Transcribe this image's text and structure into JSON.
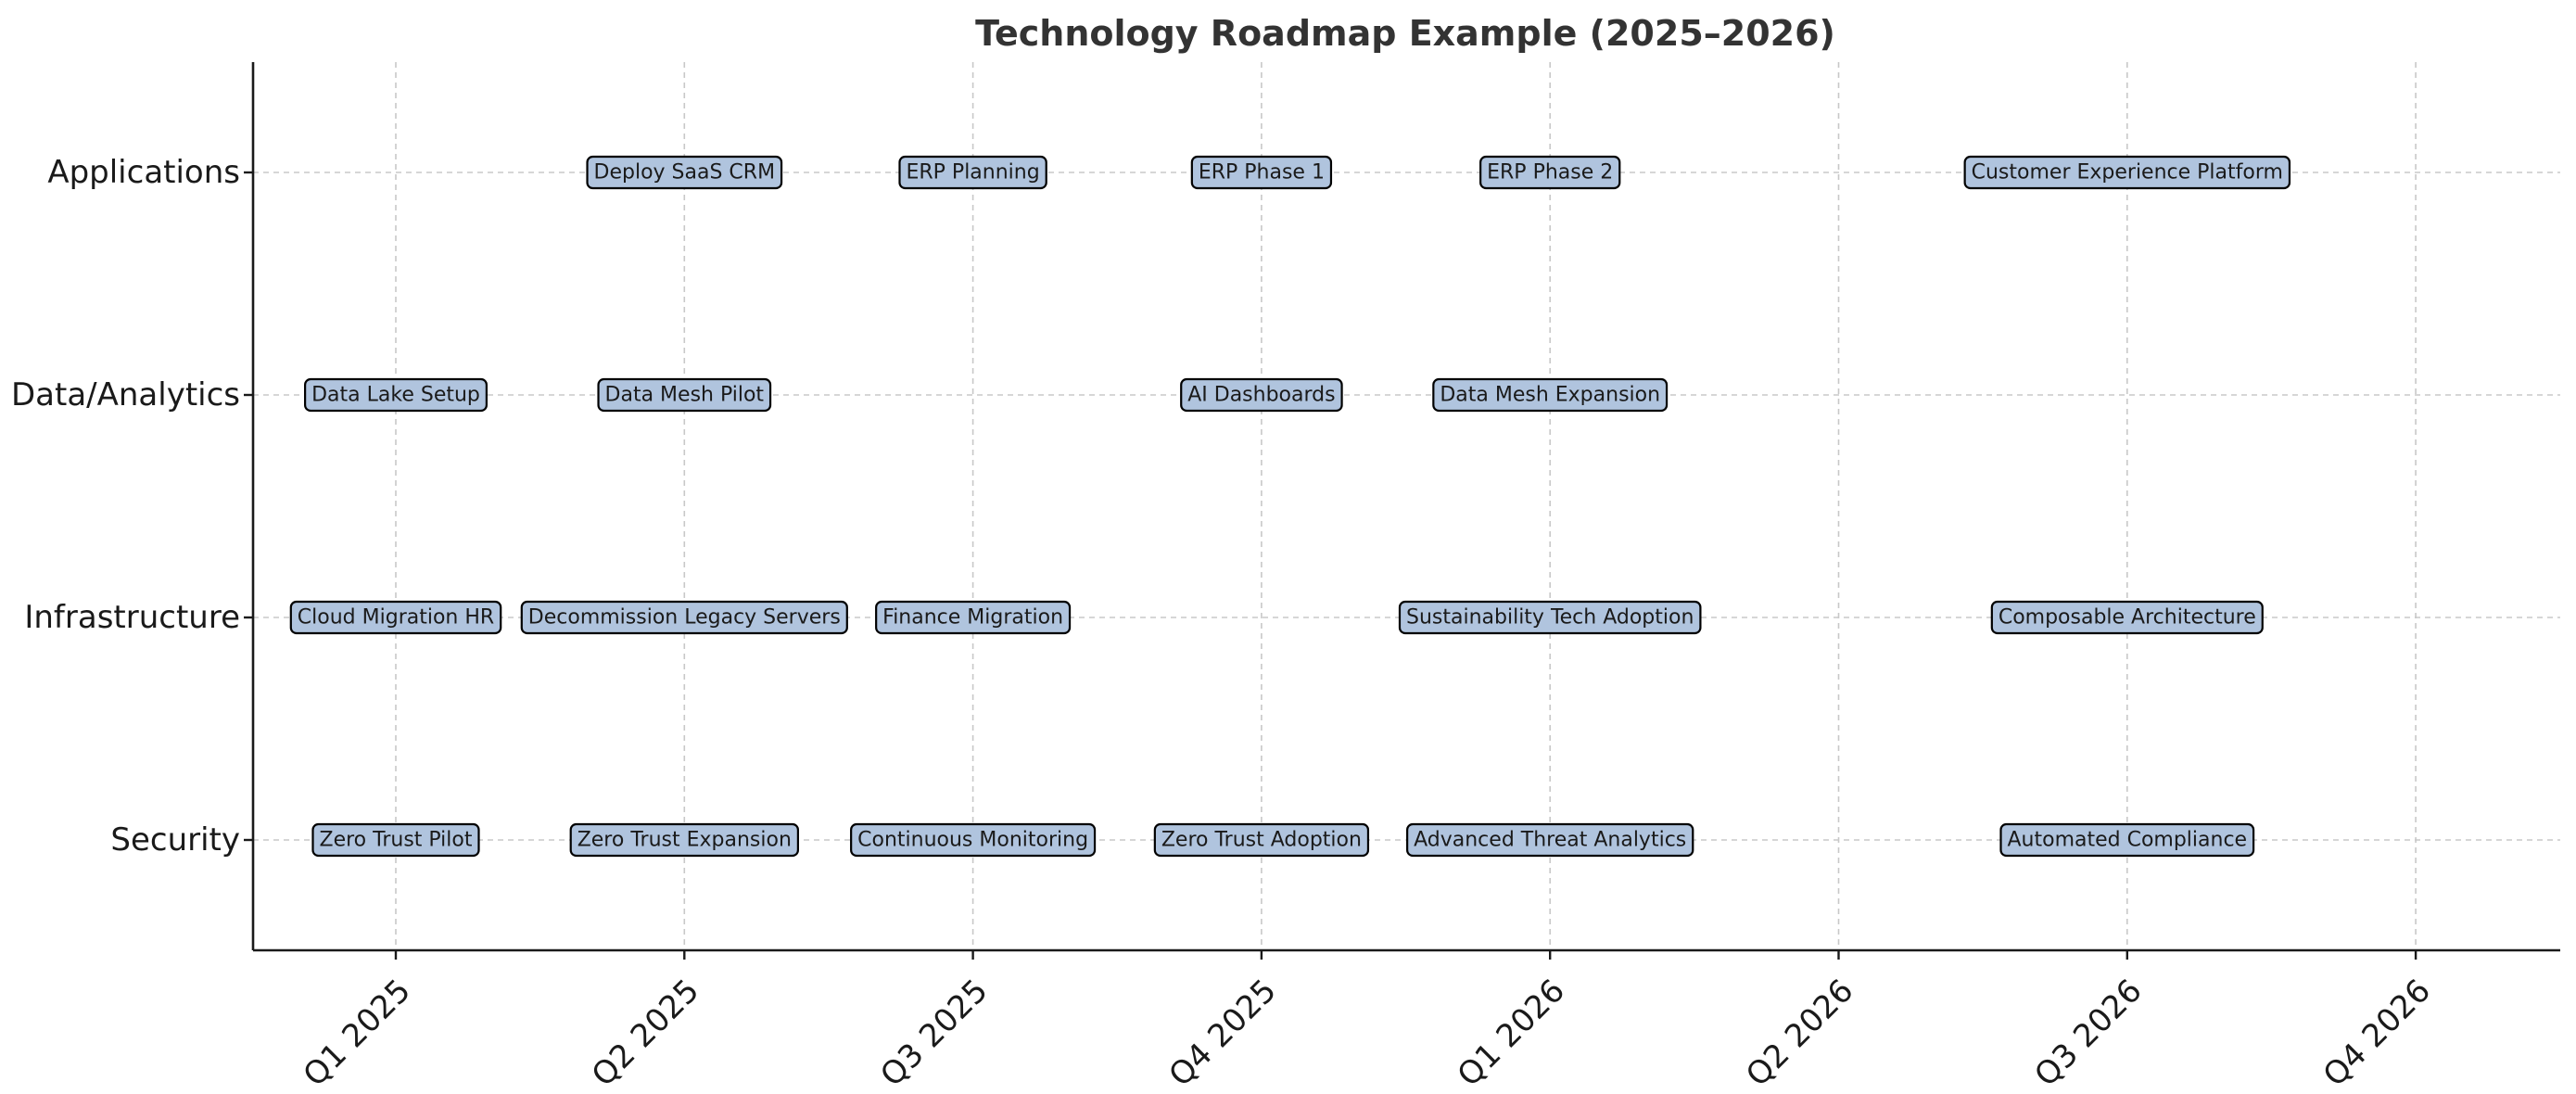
{
  "chart_data": {
    "type": "timeline",
    "title": "Technology Roadmap Example (2025–2026)",
    "xlabel": "",
    "ylabel": "",
    "x_ticks": [
      "Q1 2025",
      "Q2 2025",
      "Q3 2025",
      "Q4 2025",
      "Q1 2026",
      "Q2 2026",
      "Q3 2026",
      "Q4 2026"
    ],
    "xlim": [
      "2024-11-01",
      "2026-12-24"
    ],
    "categories": [
      "Security",
      "Infrastructure",
      "Data/Analytics",
      "Applications"
    ],
    "grid": true,
    "tag_color": "#b0c4de",
    "items": [
      {
        "lane": "Applications",
        "quarter": "Q2 2025",
        "label": "Deploy SaaS CRM"
      },
      {
        "lane": "Applications",
        "quarter": "Q3 2025",
        "label": "ERP Planning"
      },
      {
        "lane": "Applications",
        "quarter": "Q4 2025",
        "label": "ERP Phase 1"
      },
      {
        "lane": "Applications",
        "quarter": "Q1 2026",
        "label": "ERP Phase 2"
      },
      {
        "lane": "Applications",
        "quarter": "Q3 2026",
        "label": "Customer Experience Platform"
      },
      {
        "lane": "Data/Analytics",
        "quarter": "Q1 2025",
        "label": "Data Lake Setup"
      },
      {
        "lane": "Data/Analytics",
        "quarter": "Q2 2025",
        "label": "Data Mesh Pilot"
      },
      {
        "lane": "Data/Analytics",
        "quarter": "Q4 2025",
        "label": "AI Dashboards"
      },
      {
        "lane": "Data/Analytics",
        "quarter": "Q1 2026",
        "label": "Data Mesh Expansion"
      },
      {
        "lane": "Infrastructure",
        "quarter": "Q1 2025",
        "label": "Cloud Migration HR"
      },
      {
        "lane": "Infrastructure",
        "quarter": "Q2 2025",
        "label": "Decommission Legacy Servers"
      },
      {
        "lane": "Infrastructure",
        "quarter": "Q3 2025",
        "label": "Finance Migration"
      },
      {
        "lane": "Infrastructure",
        "quarter": "Q1 2026",
        "label": "Sustainability Tech Adoption"
      },
      {
        "lane": "Infrastructure",
        "quarter": "Q3 2026",
        "label": "Composable Architecture"
      },
      {
        "lane": "Security",
        "quarter": "Q1 2025",
        "label": "Zero Trust Pilot"
      },
      {
        "lane": "Security",
        "quarter": "Q2 2025",
        "label": "Zero Trust Expansion"
      },
      {
        "lane": "Security",
        "quarter": "Q3 2025",
        "label": "Continuous Monitoring"
      },
      {
        "lane": "Security",
        "quarter": "Q4 2025",
        "label": "Zero Trust Adoption"
      },
      {
        "lane": "Security",
        "quarter": "Q1 2026",
        "label": "Advanced Threat Analytics"
      },
      {
        "lane": "Security",
        "quarter": "Q3 2026",
        "label": "Automated Compliance"
      }
    ]
  }
}
